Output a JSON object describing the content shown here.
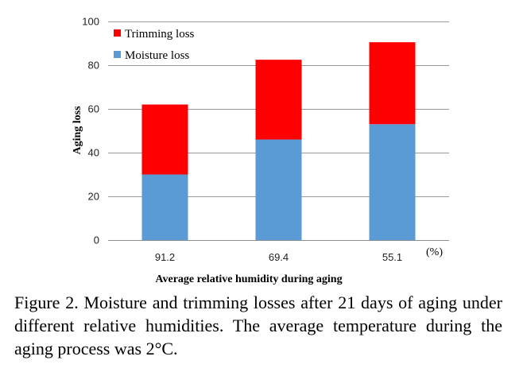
{
  "chart_data": {
    "type": "bar",
    "stacked": true,
    "categories": [
      "91.2",
      "69.4",
      "55.1"
    ],
    "series": [
      {
        "name": "Moisture loss",
        "values": [
          30,
          46,
          53
        ],
        "color": "#5b9bd5"
      },
      {
        "name": "Trimming loss",
        "values": [
          32,
          36.5,
          37.5
        ],
        "color": "#ff0000"
      }
    ],
    "ylim": [
      0,
      100
    ],
    "yticks": [
      0,
      20,
      40,
      60,
      80,
      100
    ],
    "ylabel": "Aging loss",
    "xlabel": "Average relative humidity during aging",
    "x_unit": "(%)",
    "grid": true,
    "legend_position": "top-left",
    "legend": [
      "Trimming loss",
      "Moisture loss"
    ]
  },
  "caption": "Figure 2. Moisture and trimming losses after 21 days of aging under different relative humidities. The average temperature during the aging process was 2°C."
}
